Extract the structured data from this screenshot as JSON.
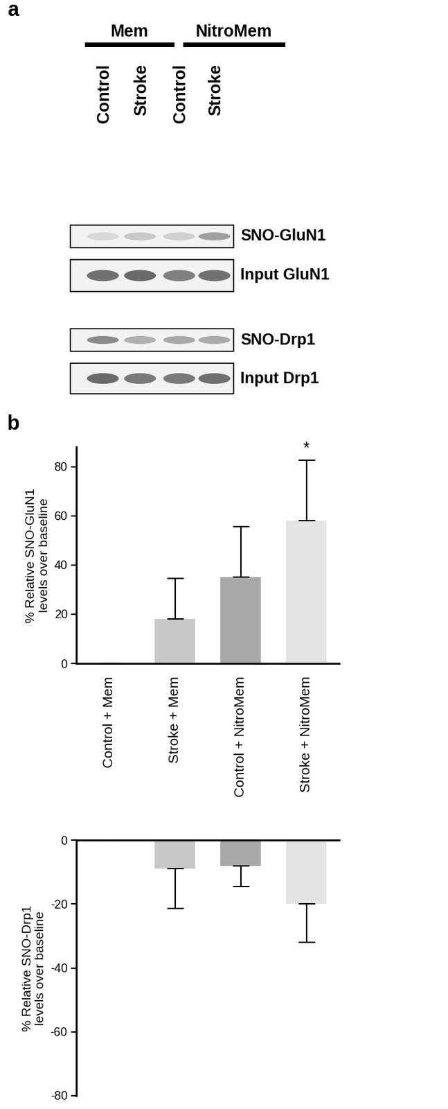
{
  "panel_labels": [
    "a",
    "b"
  ],
  "blot": {
    "groups": [
      {
        "label": "Mem",
        "lanes": [
          "Control",
          "Stroke"
        ]
      },
      {
        "label": "NitroMem",
        "lanes": [
          "Control",
          "Stroke"
        ]
      }
    ],
    "rows": [
      "SNO-GluN1",
      "Input GluN1",
      "SNO-Drp1",
      "Input Drp1"
    ]
  },
  "chart_data": [
    {
      "type": "bar",
      "categories": [
        "Control + Mem",
        "Stroke + Mem",
        "Control + NitroMem",
        "Stroke + NitroMem"
      ],
      "values": [
        0,
        18,
        35,
        58
      ],
      "errors": [
        0,
        16.5,
        20.5,
        24.5
      ],
      "colors": [
        "#c8c8c8",
        "#c8c8c8",
        "#a8a8a8",
        "#e4e4e4"
      ],
      "y_label": "% Relative SNO-GluN1\nlevels over baseline",
      "ylim": [
        0,
        88
      ],
      "yticks": [
        0,
        20,
        40,
        60,
        80
      ],
      "annotations": [
        {
          "category": "Stroke + NitroMem",
          "text": "*"
        }
      ]
    },
    {
      "type": "bar",
      "categories": [
        "Control + Mem",
        "Stroke + Mem",
        "Control + NitroMem",
        "Stroke + NitroMem"
      ],
      "values": [
        0,
        -9,
        -8,
        -20
      ],
      "errors": [
        0,
        12.5,
        6.5,
        12
      ],
      "colors": [
        "#c8c8c8",
        "#c8c8c8",
        "#a8a8a8",
        "#e4e4e4"
      ],
      "y_label": "% Relative SNO-Drp1\nlevels over baseline",
      "ylim": [
        -80,
        0
      ],
      "yticks": [
        -80,
        -60,
        -40,
        -20,
        0
      ],
      "tick_labels": "y"
    }
  ]
}
